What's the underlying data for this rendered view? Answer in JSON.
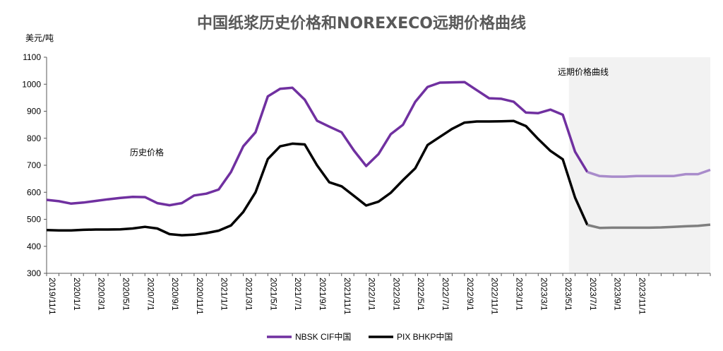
{
  "chart_data": {
    "type": "line",
    "title": "中国纸浆历史价格和NOREXECO远期价格曲线",
    "ylabel": "美元/吨",
    "xlabel": "",
    "ylim": [
      300,
      1100
    ],
    "yticks": [
      300,
      400,
      500,
      600,
      700,
      800,
      900,
      1000,
      1100
    ],
    "x_start": "2019/11",
    "x_tick_labels": [
      "2019/11/1",
      "2020/1/1",
      "2020/3/1",
      "2020/5/1",
      "2020/7/1",
      "2020/9/1",
      "2020/11/1",
      "2021/1/1",
      "2021/3/1",
      "2021/5/1",
      "2021/7/1",
      "2021/9/1",
      "2021/11/1",
      "2022/1/1",
      "2022/3/1",
      "2022/5/1",
      "2022/7/1",
      "2022/9/1",
      "2022/11/1",
      "2023/1/1",
      "2023/3/1",
      "2023/5/1",
      "2023/7/1",
      "2023/9/1",
      "2023/11/1"
    ],
    "forecast_start_index": 42,
    "forecast_shading": "#f2f2f2",
    "annotations": {
      "history": "历史价格",
      "forward": "远期价格曲线"
    },
    "grid": false,
    "legend_position": "bottom",
    "series": [
      {
        "name": "NBSK CIF中国",
        "color": "#7030a0",
        "forecast_color": "#a98ccb",
        "values": [
          572,
          567,
          558,
          562,
          568,
          574,
          579,
          583,
          582,
          560,
          552,
          560,
          588,
          595,
          610,
          675,
          770,
          822,
          955,
          983,
          987,
          943,
          865,
          843,
          822,
          755,
          697,
          741,
          815,
          850,
          935,
          990,
          1006,
          1007,
          1008,
          978,
          948,
          946,
          935,
          895,
          893,
          906,
          887,
          750,
          675,
          660,
          658,
          658,
          660,
          660,
          660,
          660,
          667,
          667,
          683
        ]
      },
      {
        "name": "PIX BHKP中国",
        "color": "#000000",
        "forecast_color": "#7f7f7f",
        "values": [
          460,
          459,
          459,
          461,
          462,
          462,
          463,
          466,
          472,
          466,
          445,
          441,
          443,
          449,
          458,
          477,
          527,
          600,
          723,
          770,
          780,
          777,
          700,
          637,
          622,
          587,
          551,
          565,
          598,
          645,
          689,
          775,
          805,
          835,
          858,
          862,
          862,
          863,
          864,
          845,
          797,
          753,
          722,
          580,
          479,
          468,
          469,
          469,
          469,
          469,
          470,
          472,
          474,
          476,
          480
        ]
      }
    ]
  }
}
